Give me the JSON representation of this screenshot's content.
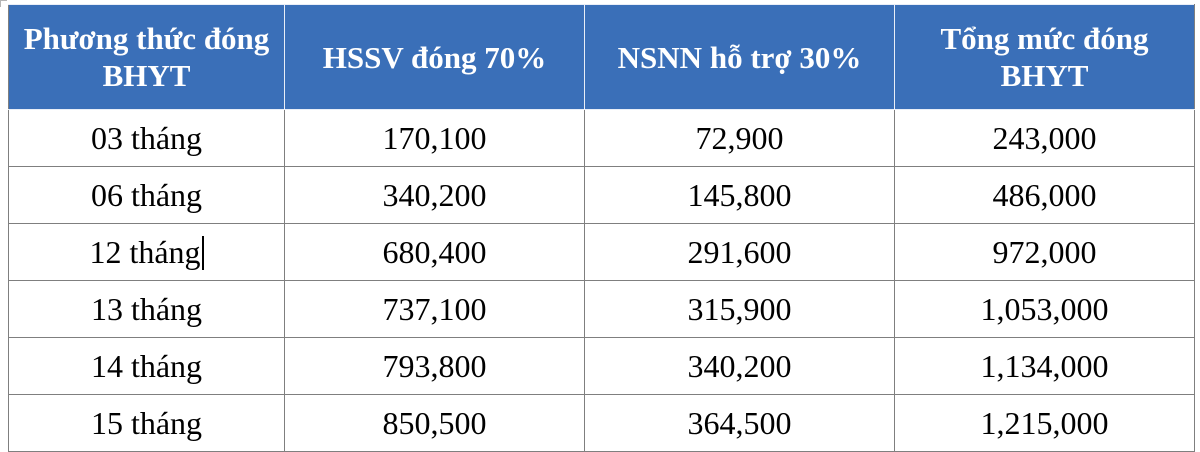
{
  "table": {
    "headers": [
      "Phương thức đóng BHYT",
      "HSSV đóng 70%",
      "NSNN hỗ trợ 30%",
      "Tổng mức đóng BHYT"
    ],
    "header_color": "#3a6fb8",
    "rows": [
      [
        "03 tháng",
        "170,100",
        "72,900",
        "243,000"
      ],
      [
        "06 tháng",
        "340,200",
        "145,800",
        "486,000"
      ],
      [
        "12 tháng",
        "680,400",
        "291,600",
        "972,000"
      ],
      [
        "13 tháng",
        "737,100",
        "315,900",
        "1,053,000"
      ],
      [
        "14 tháng",
        "793,800",
        "340,200",
        "1,134,000"
      ],
      [
        "15 tháng",
        "850,500",
        "364,500",
        "1,215,000"
      ]
    ]
  }
}
